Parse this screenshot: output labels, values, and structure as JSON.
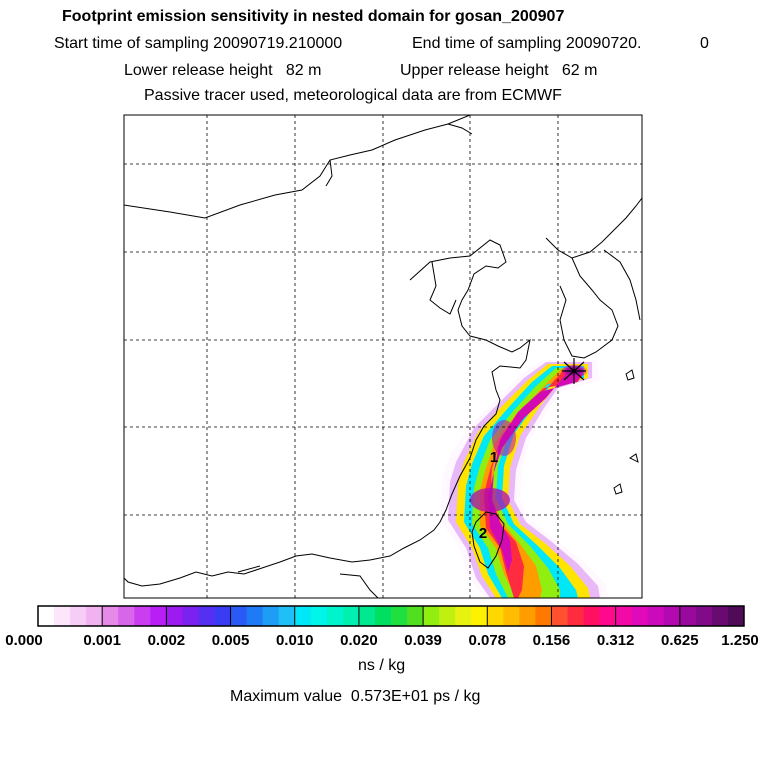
{
  "header": {
    "title": "Footprint emission sensitivity in nested domain for gosan_200907",
    "start_sampling": "Start time of sampling 20090719.210000",
    "end_sampling": "End time of sampling 20090720.",
    "end_sampling_suffix": "0",
    "lower_release": "Lower release height   82 m",
    "upper_release": "Upper release height   62 m",
    "tracer_info": "Passive tracer used, meteorological data are from ECMWF"
  },
  "map": {
    "station_marker": "release-site-star-icon",
    "labels": [
      {
        "text": "1"
      },
      {
        "text": "2"
      }
    ]
  },
  "colorbar": {
    "ticks": [
      "0.000",
      "0.001",
      "0.002",
      "0.005",
      "0.010",
      "0.020",
      "0.039",
      "0.078",
      "0.156",
      "0.312",
      "0.625",
      "1.250"
    ],
    "colors": [
      "#ffffff",
      "#fbe6fb",
      "#f6cdf6",
      "#f0b2f0",
      "#e58ae8",
      "#d866ea",
      "#c93ff0",
      "#b81ff5",
      "#9d1af0",
      "#7b22f0",
      "#5530f2",
      "#3a3cf4",
      "#2a5af5",
      "#1f7af5",
      "#1e9df5",
      "#1fc0f5",
      "#00e8f8",
      "#00f6e8",
      "#00f4cc",
      "#00f0b0",
      "#00e890",
      "#00e060",
      "#20e040",
      "#50e020",
      "#90ee10",
      "#c0f010",
      "#e8f210",
      "#fff200",
      "#ffd800",
      "#ffbc00",
      "#ff9c00",
      "#ff7800",
      "#ff5030",
      "#ff2c40",
      "#ff1060",
      "#ff0a8c",
      "#f20aa6",
      "#e00aba",
      "#cc0abc",
      "#b20ab0",
      "#980a9c",
      "#800a88",
      "#680a70",
      "#500a58"
    ],
    "units": "ns / kg",
    "max_value": "Maximum value  0.573E+01 ps / kg"
  }
}
